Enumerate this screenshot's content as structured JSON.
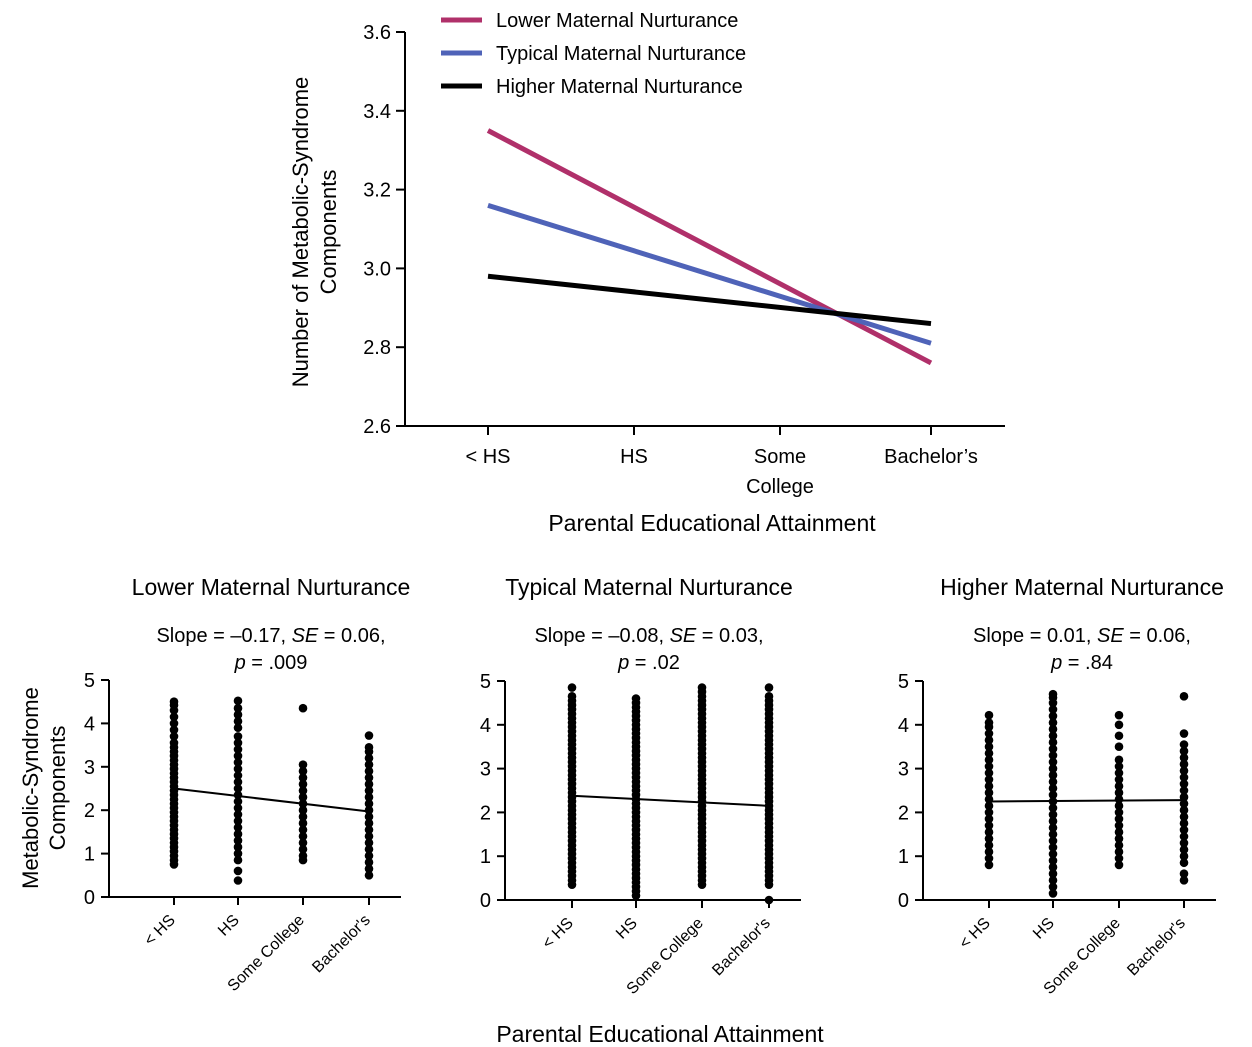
{
  "chart_data": [
    {
      "type": "line",
      "title": "",
      "xlabel": "Parental Educational Attainment",
      "ylabel_lines": [
        "Number of Metabolic-Syndrome",
        "Components"
      ],
      "categories": [
        "< HS",
        "HS",
        "Some College",
        "Bachelor’s"
      ],
      "category_label_lines": [
        [
          "< HS"
        ],
        [
          "HS"
        ],
        [
          "Some",
          "College"
        ],
        [
          "Bachelor’s"
        ]
      ],
      "ylim": [
        2.6,
        3.6
      ],
      "yticks": [
        "2.6",
        "2.8",
        "3.0",
        "3.2",
        "3.4",
        "3.6"
      ],
      "grid": false,
      "legend_position": "top",
      "series": [
        {
          "name": "Lower Maternal Nurturance",
          "color": "#b0306a",
          "start": 3.35,
          "end": 2.76
        },
        {
          "name": "Typical Maternal Nurturance",
          "color": "#4f63b8",
          "start": 3.16,
          "end": 2.81
        },
        {
          "name": "Higher Maternal Nurturance",
          "color": "#000000",
          "start": 2.98,
          "end": 2.86
        }
      ]
    },
    {
      "type": "scatter",
      "title": "Lower Maternal Nurturance",
      "stats_line1": "Slope = –0.17, ",
      "se_label": "SE",
      "stats_line1b": " = 0.06,",
      "p_label": "p",
      "stats_line2": " = .009",
      "categories": [
        "< HS",
        "HS",
        "Some College",
        "Bachelor's"
      ],
      "ylim": [
        0,
        5
      ],
      "yticks": [
        "0",
        "1",
        "2",
        "3",
        "4",
        "5"
      ],
      "fit": {
        "start": 2.5,
        "end": 1.97
      },
      "points": [
        [
          0.75,
          0.85,
          0.95,
          1.05,
          1.15,
          1.25,
          1.35,
          1.45,
          1.55,
          1.65,
          1.75,
          1.85,
          1.95,
          2.05,
          2.15,
          2.25,
          2.35,
          2.45,
          2.55,
          2.65,
          2.75,
          2.85,
          2.95,
          3.05,
          3.15,
          3.25,
          3.35,
          3.45,
          3.55,
          3.7,
          3.85,
          4.0,
          4.15,
          4.3,
          4.42,
          4.5
        ],
        [
          0.38,
          0.6,
          0.85,
          1.0,
          1.15,
          1.3,
          1.45,
          1.6,
          1.75,
          1.9,
          2.05,
          2.2,
          2.35,
          2.5,
          2.65,
          2.8,
          2.95,
          3.1,
          3.25,
          3.4,
          3.55,
          3.7,
          3.9,
          4.05,
          4.2,
          4.35,
          4.52
        ],
        [
          0.85,
          0.95,
          1.1,
          1.25,
          1.4,
          1.55,
          1.7,
          1.85,
          2.0,
          2.15,
          2.3,
          2.45,
          2.6,
          2.75,
          2.9,
          3.05,
          4.35
        ],
        [
          0.5,
          0.65,
          0.8,
          0.95,
          1.1,
          1.25,
          1.4,
          1.55,
          1.7,
          1.85,
          2.0,
          2.15,
          2.3,
          2.45,
          2.6,
          2.75,
          2.9,
          3.05,
          3.2,
          3.35,
          3.45,
          3.72
        ]
      ]
    },
    {
      "type": "scatter",
      "title": "Typical Maternal Nurturance",
      "stats_line1": "Slope = –0.08, ",
      "se_label": "SE",
      "stats_line1b": " = 0.03,",
      "p_label": "p",
      "stats_line2": " = .02",
      "categories": [
        "< HS",
        "HS",
        "Some College",
        "Bachelor's"
      ],
      "ylim": [
        0,
        5
      ],
      "yticks": [
        "0",
        "1",
        "2",
        "3",
        "4",
        "5"
      ],
      "fit": {
        "start": 2.38,
        "end": 2.15
      },
      "points": [
        [
          0.35,
          0.45,
          0.55,
          0.65,
          0.75,
          0.85,
          0.95,
          1.05,
          1.15,
          1.25,
          1.35,
          1.45,
          1.55,
          1.65,
          1.75,
          1.85,
          1.95,
          2.05,
          2.15,
          2.25,
          2.35,
          2.45,
          2.55,
          2.65,
          2.75,
          2.85,
          2.95,
          3.05,
          3.15,
          3.25,
          3.35,
          3.45,
          3.55,
          3.65,
          3.75,
          3.85,
          3.95,
          4.05,
          4.15,
          4.25,
          4.35,
          4.45,
          4.55,
          4.65,
          4.85
        ],
        [
          0.1,
          0.2,
          0.3,
          0.4,
          0.5,
          0.6,
          0.7,
          0.8,
          0.9,
          1.0,
          1.1,
          1.2,
          1.3,
          1.4,
          1.5,
          1.6,
          1.7,
          1.8,
          1.9,
          2.0,
          2.1,
          2.2,
          2.3,
          2.4,
          2.5,
          2.6,
          2.7,
          2.8,
          2.9,
          3.0,
          3.1,
          3.2,
          3.3,
          3.4,
          3.5,
          3.6,
          3.7,
          3.8,
          3.9,
          4.0,
          4.1,
          4.2,
          4.3,
          4.4,
          4.5,
          4.6
        ],
        [
          0.35,
          0.45,
          0.55,
          0.65,
          0.75,
          0.85,
          0.95,
          1.05,
          1.15,
          1.25,
          1.35,
          1.45,
          1.55,
          1.65,
          1.75,
          1.85,
          1.95,
          2.05,
          2.15,
          2.25,
          2.35,
          2.45,
          2.55,
          2.65,
          2.75,
          2.85,
          2.95,
          3.05,
          3.15,
          3.25,
          3.35,
          3.45,
          3.55,
          3.65,
          3.75,
          3.85,
          3.95,
          4.05,
          4.15,
          4.25,
          4.35,
          4.45,
          4.55,
          4.65,
          4.75,
          4.85
        ],
        [
          0.0,
          0.35,
          0.45,
          0.55,
          0.65,
          0.75,
          0.85,
          0.95,
          1.05,
          1.15,
          1.25,
          1.35,
          1.45,
          1.55,
          1.65,
          1.75,
          1.85,
          1.95,
          2.05,
          2.15,
          2.25,
          2.35,
          2.45,
          2.55,
          2.65,
          2.75,
          2.85,
          2.95,
          3.05,
          3.15,
          3.25,
          3.35,
          3.45,
          3.55,
          3.65,
          3.75,
          3.85,
          3.95,
          4.05,
          4.15,
          4.25,
          4.35,
          4.45,
          4.55,
          4.65,
          4.85
        ]
      ]
    },
    {
      "type": "scatter",
      "title": "Higher Maternal Nurturance",
      "stats_line1": "Slope = 0.01, ",
      "se_label": "SE",
      "stats_line1b": " = 0.06,",
      "p_label": "p",
      "stats_line2": " = .84",
      "categories": [
        "< HS",
        "HS",
        "Some College",
        "Bachelor's"
      ],
      "ylim": [
        0,
        5
      ],
      "yticks": [
        "0",
        "1",
        "2",
        "3",
        "4",
        "5"
      ],
      "fit": {
        "start": 2.25,
        "end": 2.28
      },
      "points": [
        [
          0.8,
          0.95,
          1.1,
          1.25,
          1.4,
          1.55,
          1.7,
          1.85,
          2.0,
          2.15,
          2.3,
          2.45,
          2.6,
          2.75,
          2.9,
          3.05,
          3.2,
          3.35,
          3.5,
          3.65,
          3.8,
          3.95,
          4.05,
          4.22
        ],
        [
          0.15,
          0.3,
          0.45,
          0.6,
          0.75,
          0.9,
          1.05,
          1.2,
          1.35,
          1.5,
          1.65,
          1.8,
          1.95,
          2.1,
          2.25,
          2.4,
          2.55,
          2.7,
          2.85,
          3.0,
          3.15,
          3.3,
          3.45,
          3.6,
          3.75,
          3.9,
          4.05,
          4.2,
          4.35,
          4.5,
          4.62,
          4.7
        ],
        [
          0.8,
          0.95,
          1.1,
          1.25,
          1.4,
          1.55,
          1.7,
          1.85,
          2.0,
          2.15,
          2.3,
          2.45,
          2.6,
          2.75,
          2.9,
          3.05,
          3.2,
          3.5,
          3.75,
          4.0,
          4.22
        ],
        [
          0.45,
          0.6,
          0.85,
          1.0,
          1.15,
          1.3,
          1.45,
          1.6,
          1.75,
          1.9,
          2.05,
          2.2,
          2.35,
          2.5,
          2.65,
          2.8,
          2.95,
          3.1,
          3.25,
          3.4,
          3.55,
          3.8,
          4.65
        ]
      ]
    }
  ],
  "shared_labels": {
    "bottom_xlabel": "Parental Educational Attainment",
    "bottom_ylabel_lines": [
      "Metabolic-Syndrome",
      "Components"
    ]
  }
}
